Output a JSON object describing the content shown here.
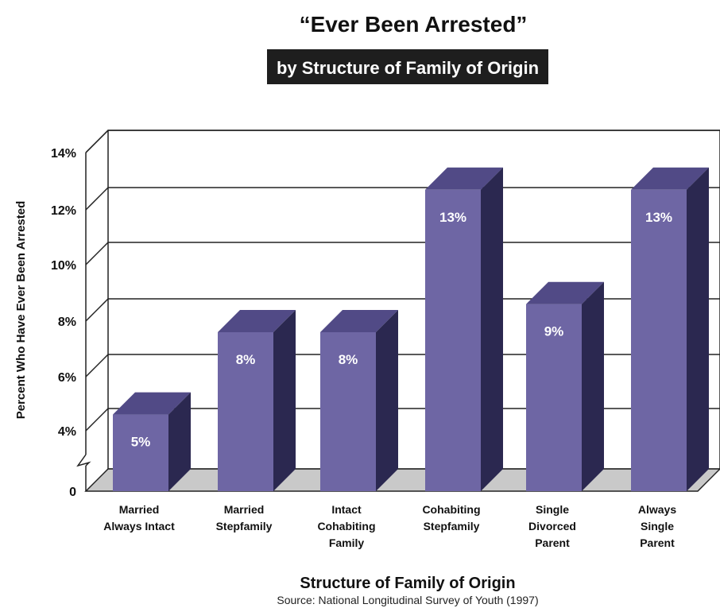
{
  "chart_data": {
    "type": "bar",
    "title": "“Ever Been Arrested”",
    "subtitle": "by Structure of Family of Origin",
    "ylabel": "Percent Who Have Ever Been Arrested",
    "xlabel": "Structure of Family of Origin",
    "source": "Source: National Longitudinal Survey of Youth (1997)",
    "y_ticks": [
      "0",
      "4%",
      "6%",
      "8%",
      "10%",
      "12%",
      "14%"
    ],
    "ylim": [
      0,
      14
    ],
    "axis_break": true,
    "grid": true,
    "style": "3d",
    "bar_color": "#6e66a4",
    "categories": [
      [
        "Married",
        "Always Intact"
      ],
      [
        "Married",
        "Stepfamily"
      ],
      [
        "Intact",
        "Cohabiting",
        "Family"
      ],
      [
        "Cohabiting",
        "Stepfamily"
      ],
      [
        "Single",
        "Divorced",
        "Parent"
      ],
      [
        "Always",
        "Single",
        "Parent"
      ]
    ],
    "values": [
      4.6,
      7.6,
      7.6,
      12.7,
      8.6,
      12.7
    ],
    "value_labels": [
      "5%",
      "8%",
      "8%",
      "13%",
      "9%",
      "13%"
    ]
  }
}
